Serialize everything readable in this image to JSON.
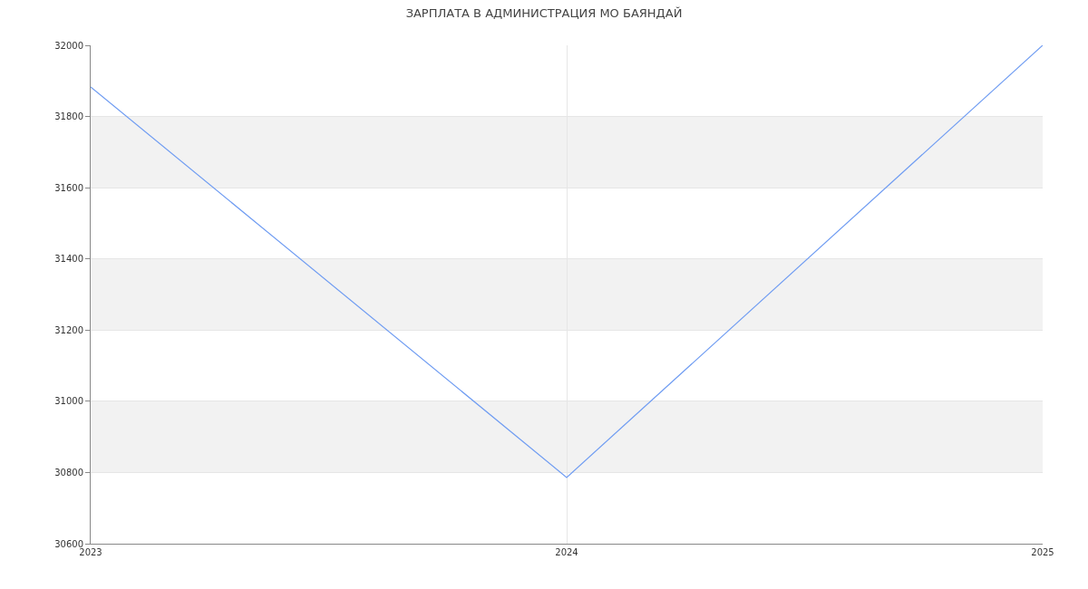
{
  "chart_data": {
    "type": "line",
    "title": "ЗАРПЛАТА В АДМИНИСТРАЦИЯ МО БАЯНДАЙ",
    "x": [
      2023,
      2024,
      2025
    ],
    "series": [
      {
        "color": "#6f9cf2",
        "values": [
          31883,
          30786,
          32000
        ]
      }
    ],
    "xlim": [
      2023,
      2025
    ],
    "xticks": [
      2023,
      2024,
      2025
    ],
    "ylim": [
      30600,
      32000
    ],
    "yticks": [
      30600,
      30800,
      31000,
      31200,
      31400,
      31600,
      31800,
      32000
    ],
    "bands": [
      {
        "axis": "y",
        "from": 30800,
        "to": 31000,
        "color": "#f2f2f2"
      },
      {
        "axis": "y",
        "from": 31200,
        "to": 31400,
        "color": "#f2f2f2"
      },
      {
        "axis": "y",
        "from": 31600,
        "to": 31800,
        "color": "#f2f2f2"
      }
    ],
    "grid": true,
    "marker": "none",
    "line_style": "solid"
  }
}
